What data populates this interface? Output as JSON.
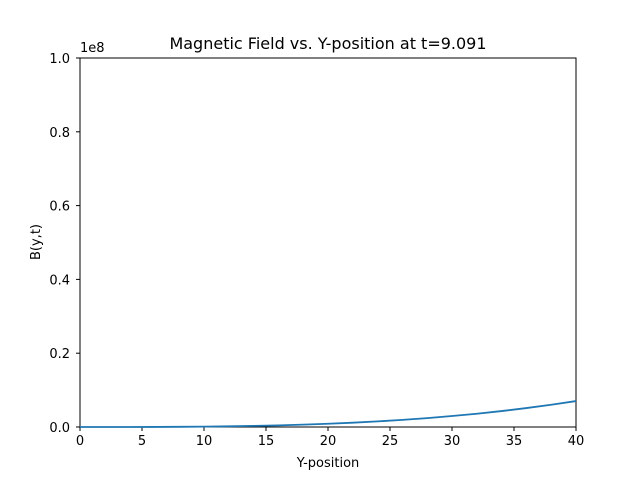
{
  "chart_data": {
    "type": "line",
    "title": "Magnetic Field vs. Y-position at t=9.091",
    "xlabel": "Y-position",
    "ylabel": "B(y,t)",
    "y_offset_label": "1e8",
    "xlim": [
      0,
      40
    ],
    "ylim": [
      0,
      1.0
    ],
    "x_ticks": [
      0,
      5,
      10,
      15,
      20,
      25,
      30,
      35,
      40
    ],
    "x_tick_labels": [
      "0",
      "5",
      "10",
      "15",
      "20",
      "25",
      "30",
      "35",
      "40"
    ],
    "y_ticks": [
      0,
      0.2,
      0.4,
      0.6,
      0.8,
      1.0
    ],
    "y_tick_labels": [
      "0.0",
      "0.2",
      "0.4",
      "0.6",
      "0.8",
      "1.0"
    ],
    "grid": false,
    "series": [
      {
        "color": "#1f77b4",
        "x": [
          0,
          2,
          4,
          6,
          8,
          10,
          12,
          14,
          16,
          18,
          20,
          22,
          24,
          26,
          28,
          30,
          32,
          34,
          36,
          38,
          40
        ],
        "y": [
          0,
          1e-05,
          7e-05,
          0.00023,
          0.00055,
          0.0011,
          0.0019,
          0.003,
          0.0045,
          0.0064,
          0.0088,
          0.0117,
          0.0152,
          0.0193,
          0.0241,
          0.0297,
          0.036,
          0.0432,
          0.0513,
          0.0603,
          0.0703
        ]
      }
    ]
  }
}
